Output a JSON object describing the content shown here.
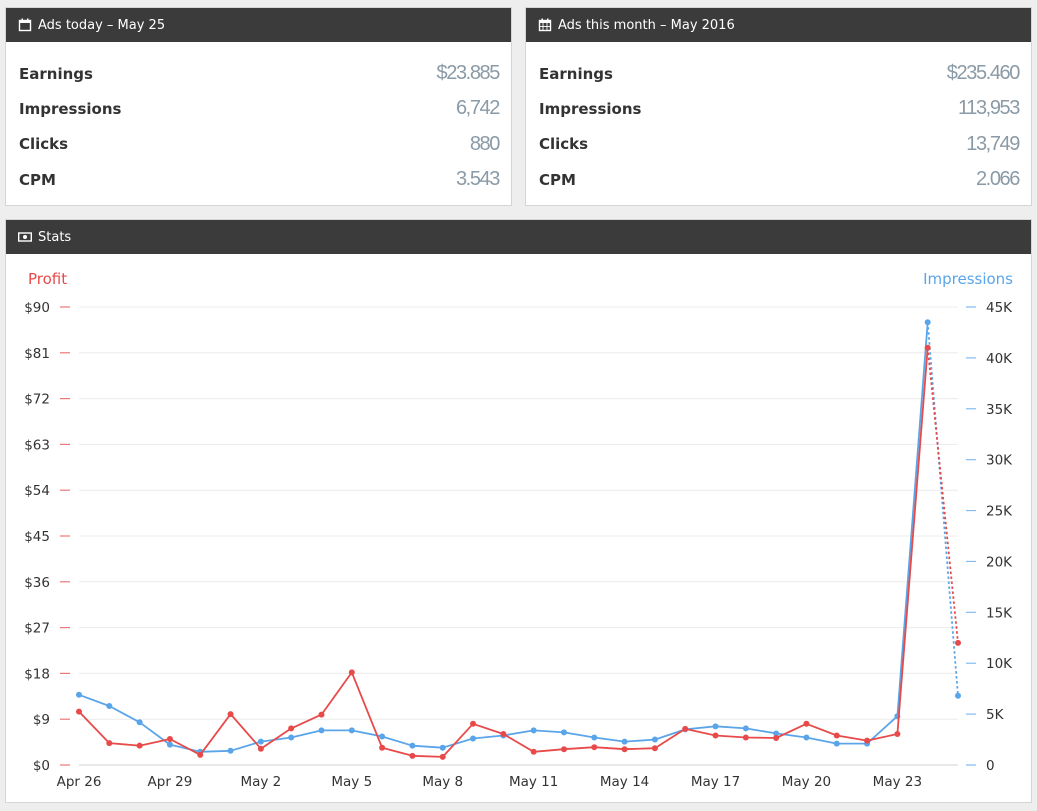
{
  "panels": [
    {
      "title": "Ads today – May 25",
      "icon": "calendar-icon",
      "rows": [
        {
          "label": "Earnings",
          "value": "$23.885"
        },
        {
          "label": "Impressions",
          "value": "6,742"
        },
        {
          "label": "Clicks",
          "value": "880"
        },
        {
          "label": "CPM",
          "value": "3.543"
        }
      ]
    },
    {
      "title": "Ads this month – May 2016",
      "icon": "calendar-grid-icon",
      "rows": [
        {
          "label": "Earnings",
          "value": "$235.460"
        },
        {
          "label": "Impressions",
          "value": "113,953"
        },
        {
          "label": "Clicks",
          "value": "13,749"
        },
        {
          "label": "CPM",
          "value": "2.066"
        }
      ]
    }
  ],
  "stats": {
    "title": "Stats",
    "icon": "money-icon"
  },
  "colors": {
    "profit": "#e84a4a",
    "impressions": "#5aa5ea",
    "header_bg": "#3b3b3b",
    "grid": "#ececec"
  },
  "chart_data": {
    "type": "line",
    "title": "",
    "x": [
      "Apr 26",
      "Apr 27",
      "Apr 28",
      "Apr 29",
      "Apr 30",
      "May 1",
      "May 2",
      "May 3",
      "May 4",
      "May 5",
      "May 6",
      "May 7",
      "May 8",
      "May 9",
      "May 10",
      "May 11",
      "May 12",
      "May 13",
      "May 14",
      "May 15",
      "May 16",
      "May 17",
      "May 18",
      "May 19",
      "May 20",
      "May 21",
      "May 22",
      "May 23",
      "May 24",
      "May 25"
    ],
    "x_tick_labels": [
      "Apr 26",
      "Apr 29",
      "May 2",
      "May 5",
      "May 8",
      "May 11",
      "May 14",
      "May 17",
      "May 20",
      "May 23"
    ],
    "y_left": {
      "label": "Profit",
      "min": 0,
      "max": 90,
      "ticks": [
        "$0",
        "$9",
        "$18",
        "$27",
        "$36",
        "$45",
        "$54",
        "$63",
        "$72",
        "$81",
        "$90"
      ]
    },
    "y_right": {
      "label": "Impressions",
      "min": 0,
      "max": 45000,
      "ticks": [
        "0",
        "5K",
        "10K",
        "15K",
        "20K",
        "25K",
        "30K",
        "35K",
        "40K",
        "45K"
      ]
    },
    "series": [
      {
        "name": "Profit",
        "axis": "left",
        "values": [
          10.5,
          4.3,
          3.8,
          5.1,
          2.0,
          10.0,
          3.2,
          7.2,
          9.9,
          18.2,
          3.4,
          1.8,
          1.6,
          8.1,
          6.1,
          2.6,
          3.1,
          3.5,
          3.1,
          3.3,
          7.1,
          5.8,
          5.4,
          5.3,
          8.1,
          5.8,
          4.8,
          6.1,
          82.0,
          24.0
        ],
        "last_segment_dotted": true
      },
      {
        "name": "Impressions",
        "axis": "right",
        "values": [
          6900,
          5800,
          4200,
          2000,
          1300,
          1400,
          2300,
          2700,
          3400,
          3400,
          2800,
          1900,
          1700,
          2600,
          2900,
          3400,
          3200,
          2700,
          2300,
          2500,
          3500,
          3800,
          3600,
          3100,
          2700,
          2100,
          2100,
          4800,
          43500,
          6800
        ],
        "last_segment_dotted": true
      }
    ],
    "grid": true,
    "legend": "axis titles (left: Profit, right: Impressions)"
  }
}
